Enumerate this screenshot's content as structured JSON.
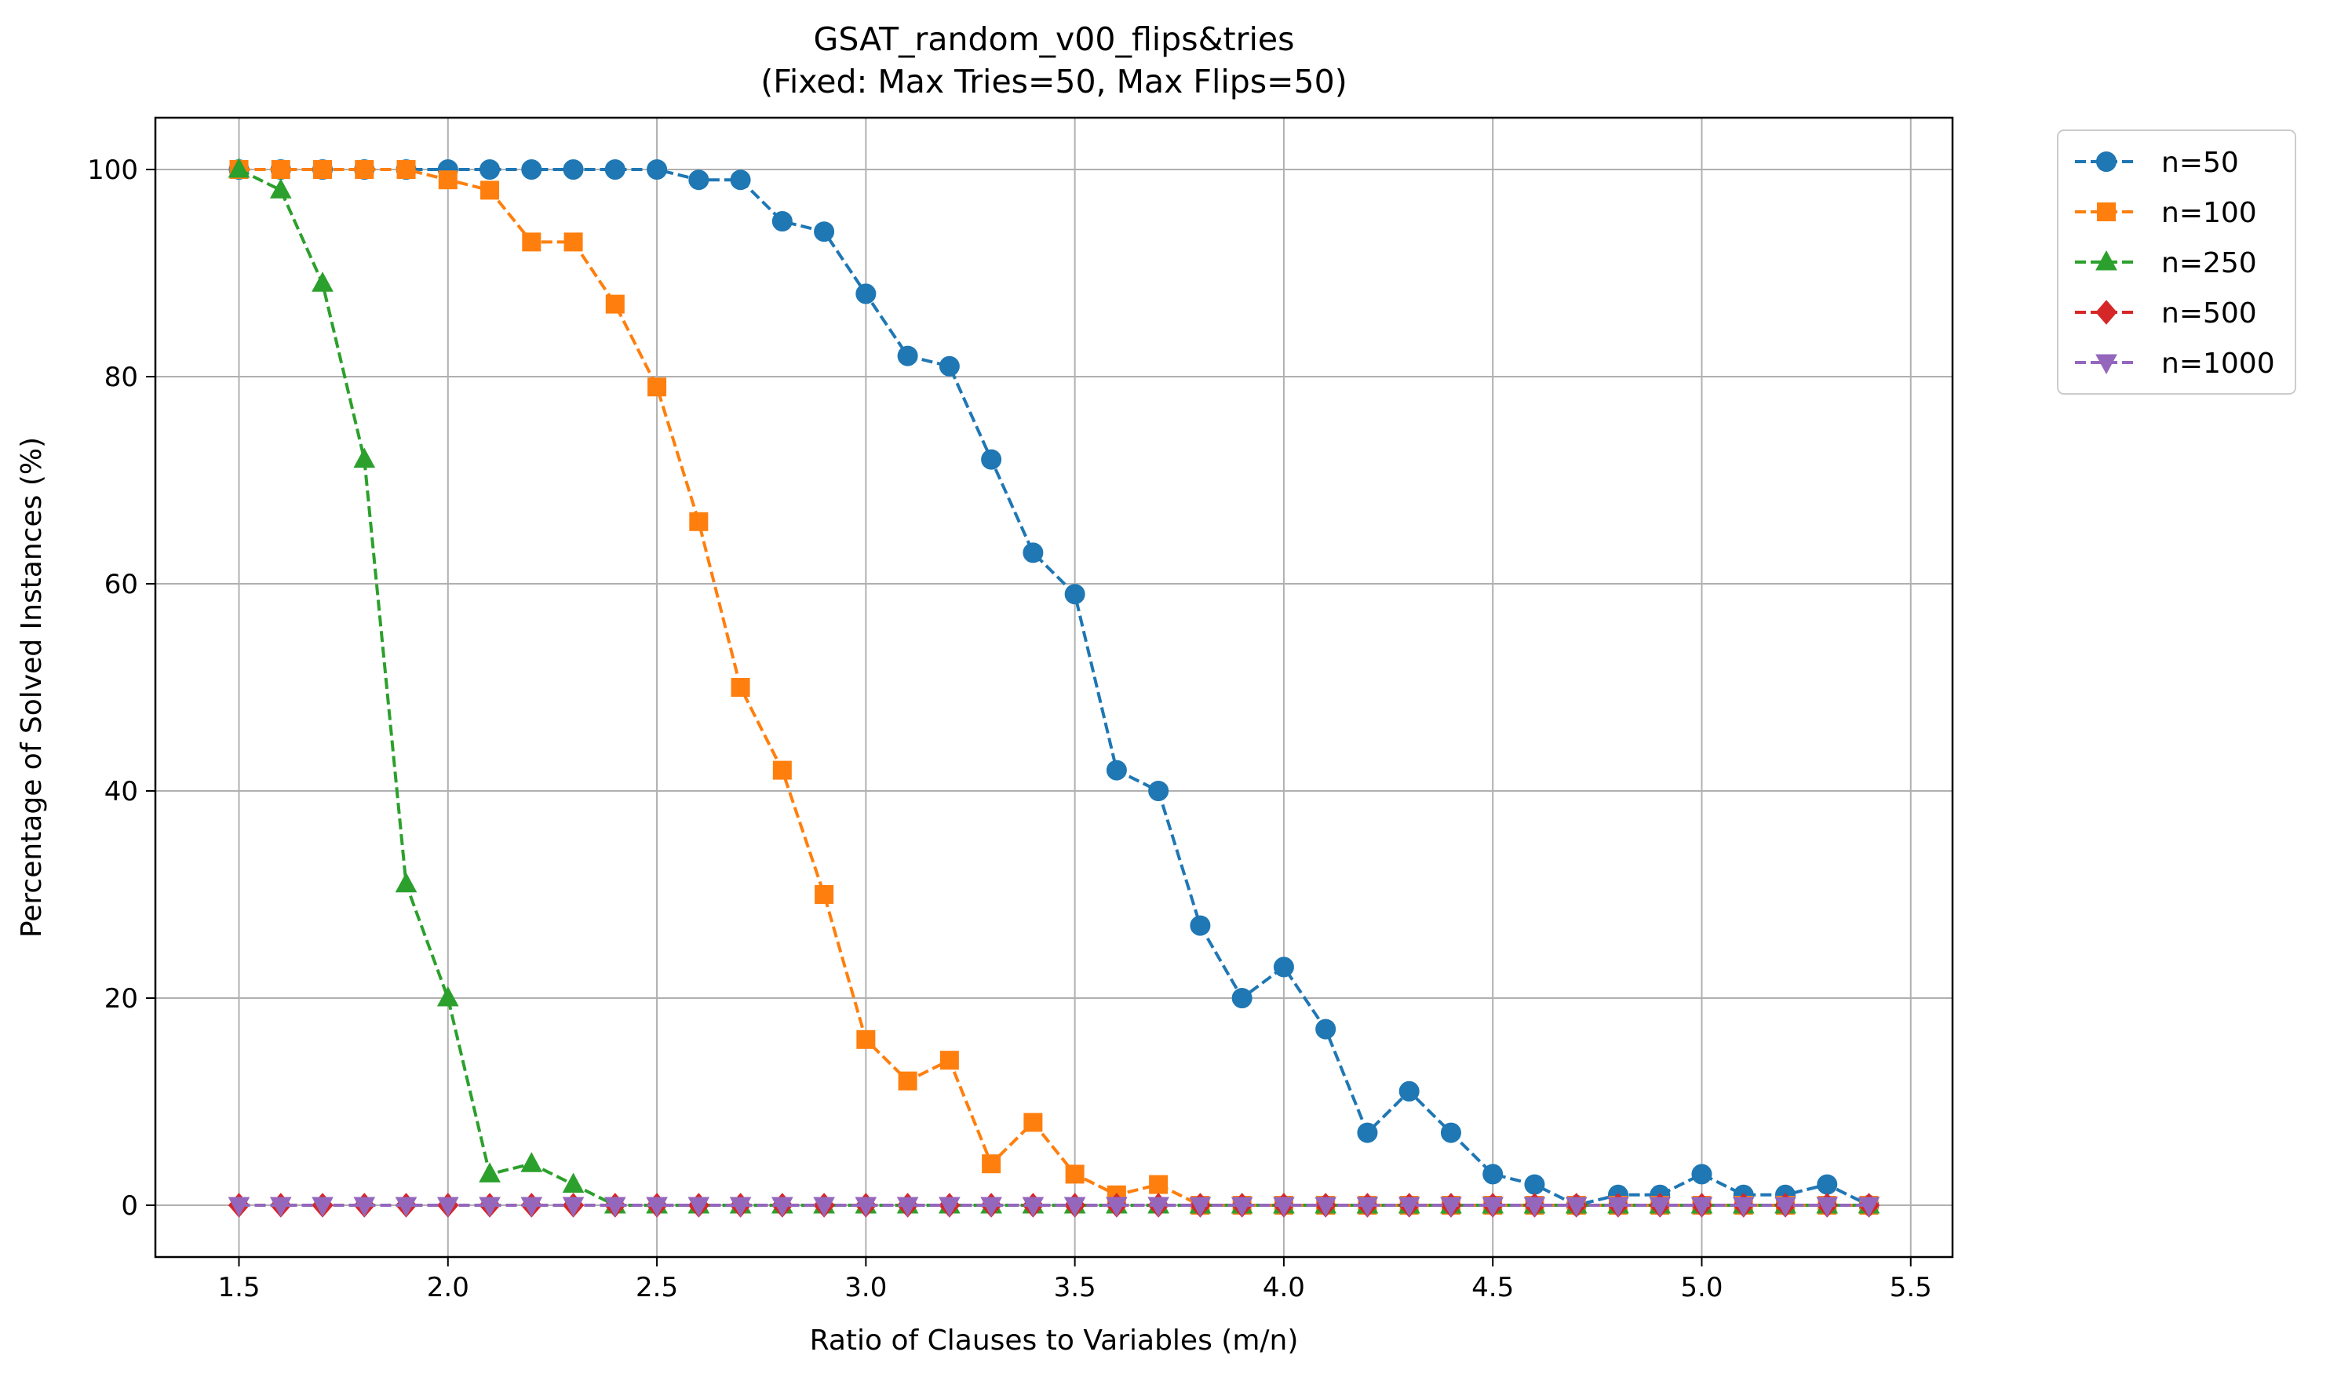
{
  "chart_data": {
    "type": "line",
    "title": "GSAT_random_v00_flips&tries",
    "subtitle": "(Fixed: Max Tries=50, Max Flips=50)",
    "xlabel": "Ratio of Clauses to Variables (m/n)",
    "ylabel": "Percentage of Solved Instances (%)",
    "xlim": [
      1.3,
      5.6
    ],
    "ylim": [
      -5,
      105
    ],
    "xticks": [
      "1.5",
      "2.0",
      "2.5",
      "3.0",
      "3.5",
      "4.0",
      "4.5",
      "5.0",
      "5.5"
    ],
    "yticks": [
      "0",
      "20",
      "40",
      "60",
      "80",
      "100"
    ],
    "grid": true,
    "legend_position": "outside-top-right",
    "x": [
      1.5,
      1.6,
      1.7,
      1.8,
      1.9,
      2.0,
      2.1,
      2.2,
      2.3,
      2.4,
      2.5,
      2.6,
      2.7,
      2.8,
      2.9,
      3.0,
      3.1,
      3.2,
      3.3,
      3.4,
      3.5,
      3.6,
      3.7,
      3.8,
      3.9,
      4.0,
      4.1,
      4.2,
      4.3,
      4.4,
      4.5,
      4.6,
      4.7,
      4.8,
      4.9,
      5.0,
      5.1,
      5.2,
      5.3,
      5.4
    ],
    "series": [
      {
        "name": "n=50",
        "color": "#1f77b4",
        "marker": "circle",
        "values": [
          100,
          100,
          100,
          100,
          100,
          100,
          100,
          100,
          100,
          100,
          100,
          99,
          99,
          95,
          94,
          88,
          82,
          81,
          72,
          63,
          59,
          42,
          40,
          27,
          20,
          23,
          17,
          7,
          11,
          7,
          3,
          2,
          0,
          1,
          1,
          3,
          1,
          1,
          2,
          0
        ]
      },
      {
        "name": "n=100",
        "color": "#ff7f0e",
        "marker": "square",
        "values": [
          100,
          100,
          100,
          100,
          100,
          99,
          98,
          93,
          93,
          87,
          79,
          66,
          50,
          42,
          30,
          16,
          12,
          14,
          4,
          8,
          3,
          1,
          2,
          0,
          0,
          0,
          0,
          0,
          0,
          0,
          0,
          0,
          0,
          0,
          0,
          0,
          0,
          0,
          0,
          0
        ]
      },
      {
        "name": "n=250",
        "color": "#2ca02c",
        "marker": "triangle-up",
        "values": [
          100,
          98,
          89,
          72,
          31,
          20,
          3,
          4,
          2,
          0,
          0,
          0,
          0,
          0,
          0,
          0,
          0,
          0,
          0,
          0,
          0,
          0,
          0,
          0,
          0,
          0,
          0,
          0,
          0,
          0,
          0,
          0,
          0,
          0,
          0,
          0,
          0,
          0,
          0,
          0
        ]
      },
      {
        "name": "n=500",
        "color": "#d62728",
        "marker": "diamond",
        "values": [
          0,
          0,
          0,
          0,
          0,
          0,
          0,
          0,
          0,
          0,
          0,
          0,
          0,
          0,
          0,
          0,
          0,
          0,
          0,
          0,
          0,
          0,
          0,
          0,
          0,
          0,
          0,
          0,
          0,
          0,
          0,
          0,
          0,
          0,
          0,
          0,
          0,
          0,
          0,
          0
        ]
      },
      {
        "name": "n=1000",
        "color": "#9467bd",
        "marker": "triangle-down",
        "values": [
          0,
          0,
          0,
          0,
          0,
          0,
          0,
          0,
          0,
          0,
          0,
          0,
          0,
          0,
          0,
          0,
          0,
          0,
          0,
          0,
          0,
          0,
          0,
          0,
          0,
          0,
          0,
          0,
          0,
          0,
          0,
          0,
          0,
          0,
          0,
          0,
          0,
          0,
          0,
          0
        ]
      }
    ]
  }
}
